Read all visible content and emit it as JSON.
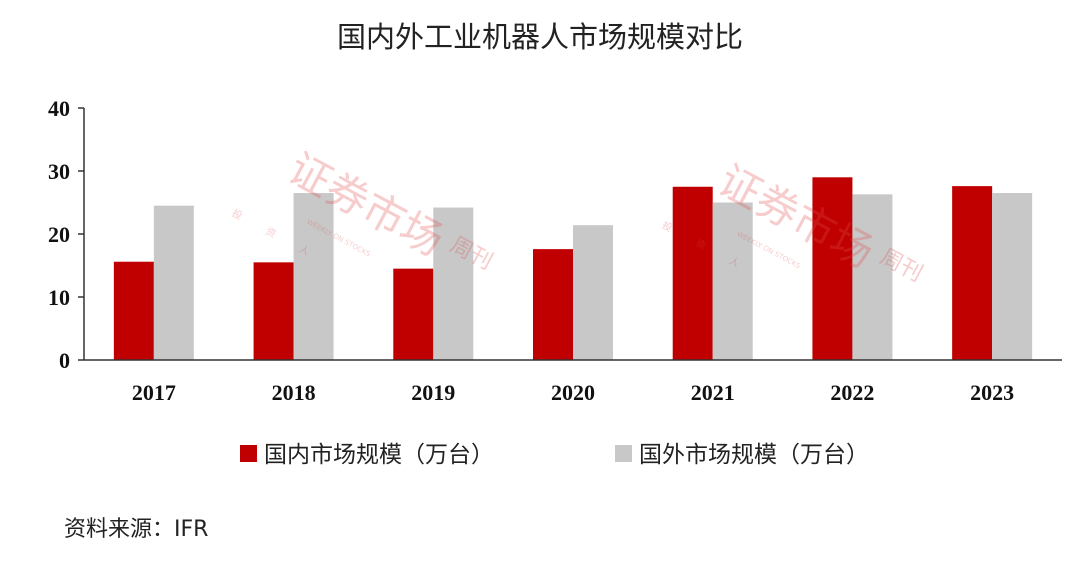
{
  "chart_data": {
    "type": "bar",
    "title": "国内外工业机器人市场规模对比",
    "categories": [
      "2017",
      "2018",
      "2019",
      "2020",
      "2021",
      "2022",
      "2023"
    ],
    "series": [
      {
        "name": "国内市场规模（万台）",
        "color": "#c00000",
        "values": [
          15.6,
          15.5,
          14.5,
          17.6,
          27.5,
          29.0,
          27.6
        ]
      },
      {
        "name": "国外市场规模（万台）",
        "color": "#c8c8c8",
        "values": [
          24.5,
          26.5,
          24.2,
          21.4,
          25.0,
          26.3,
          26.5
        ]
      }
    ],
    "ylim": [
      0,
      40
    ],
    "yticks": [
      0,
      10,
      20,
      30,
      40
    ],
    "xlabel": "",
    "ylabel": "",
    "grid": false,
    "legend_position": "bottom"
  },
  "source": "资料来源：IFR",
  "watermark": {
    "main": "证券市场",
    "sub": "周刊",
    "small": "WEEKLY ON STOCKS",
    "chars": [
      "投",
      "资",
      "人"
    ]
  }
}
